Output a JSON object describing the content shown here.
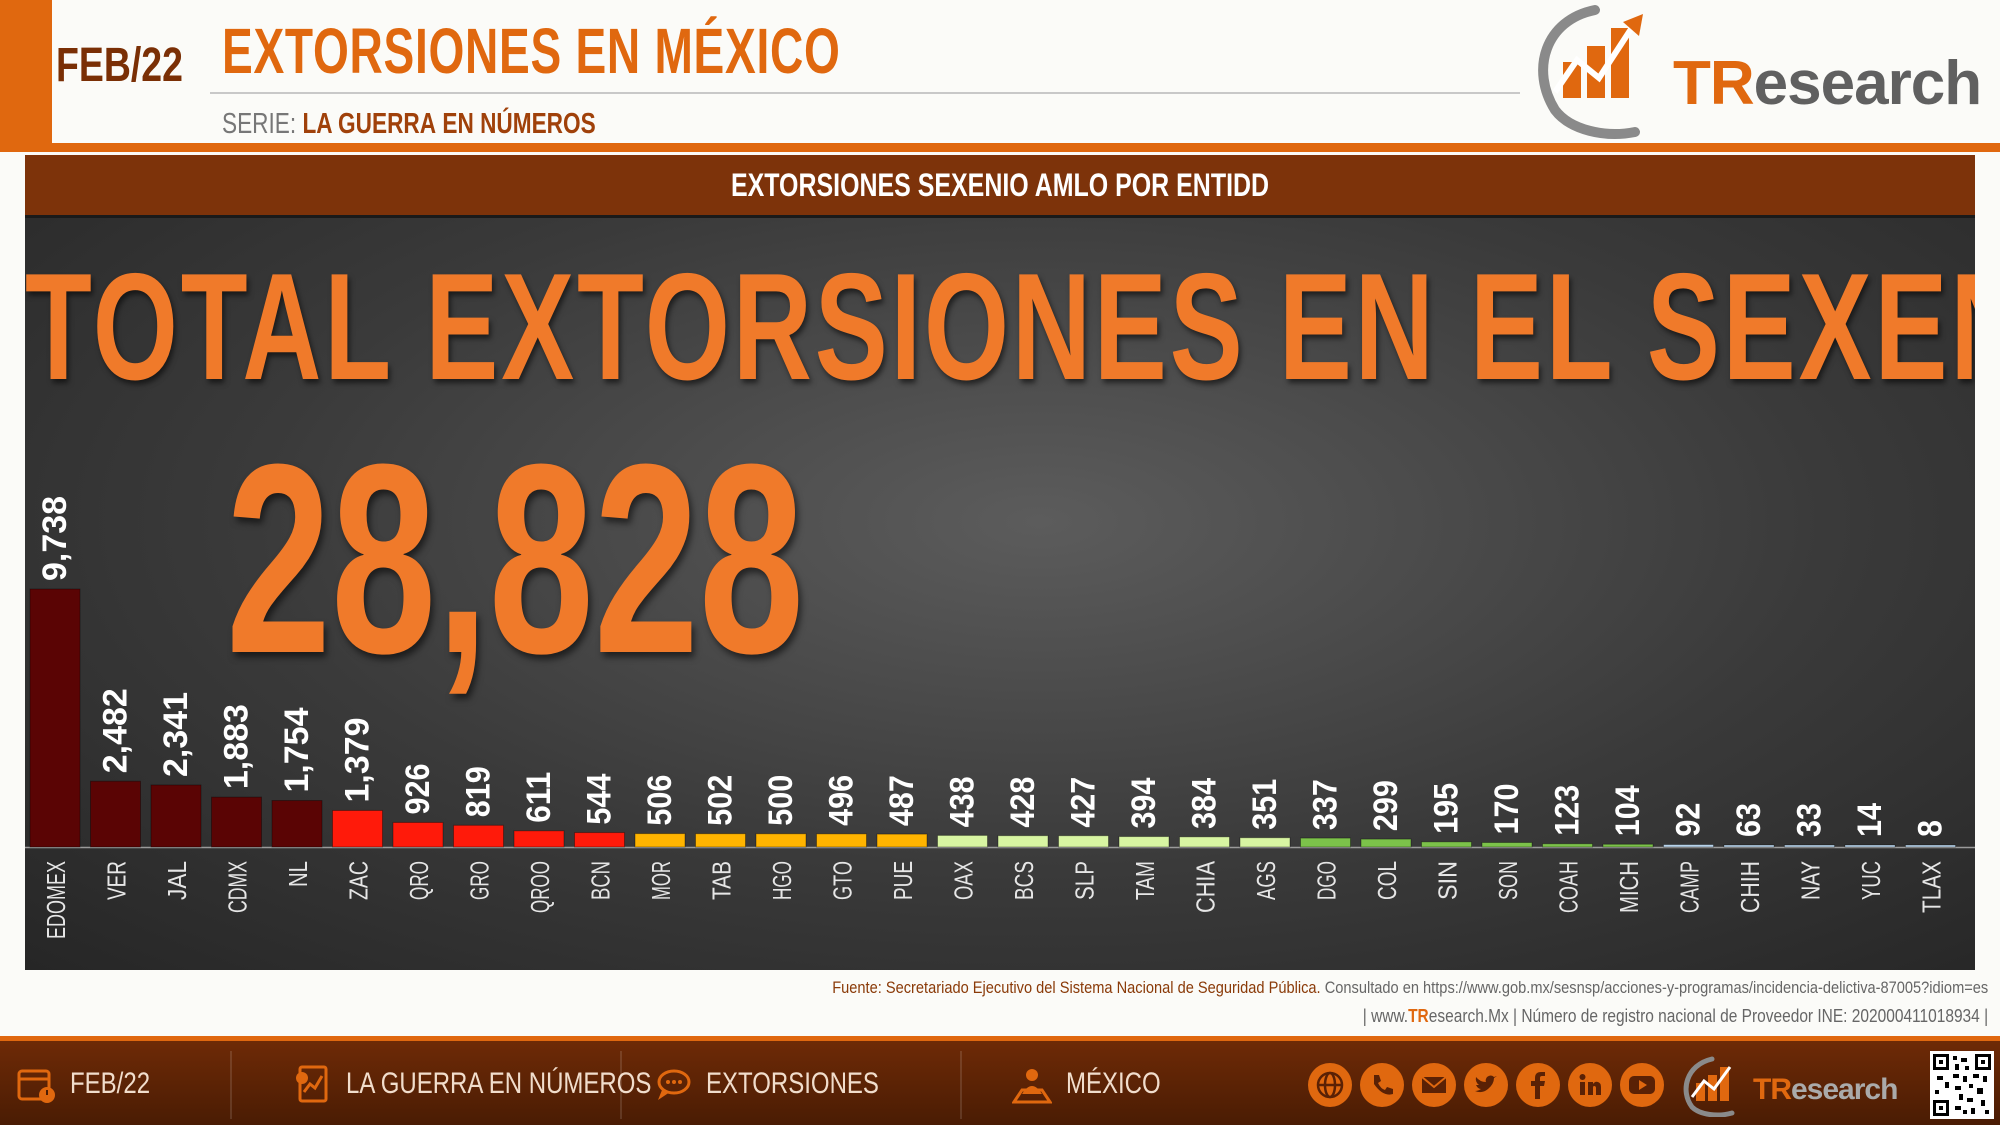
{
  "header": {
    "date": "FEB/22",
    "title": "EXTORSIONES EN MÉXICO",
    "series_prefix": "SERIE:",
    "series_name": "LA GUERRA",
    "series_suffix": "EN NÚMEROS"
  },
  "logo": {
    "tr": "TR",
    "rest": "esearch"
  },
  "chart": {
    "panel_title": "EXTORSIONES SEXENIO AMLO POR ENTIDD",
    "total_heading": "TOTAL EXTORSIONES EN EL SEXENIO",
    "total_value": "28,828"
  },
  "chart_data": {
    "type": "bar",
    "title": "EXTORSIONES SEXENIO AMLO POR ENTIDD",
    "categories": [
      "EDOMEX",
      "VER",
      "JAL",
      "CDMX",
      "NL",
      "ZAC",
      "QRO",
      "GRO",
      "QROO",
      "BCN",
      "MOR",
      "TAB",
      "HGO",
      "GTO",
      "PUE",
      "OAX",
      "BCS",
      "SLP",
      "TAM",
      "CHIA",
      "AGS",
      "DGO",
      "COL",
      "SIN",
      "SON",
      "COAH",
      "MICH",
      "CAMP",
      "CHIH",
      "NAY",
      "YUC",
      "TLAX"
    ],
    "values": [
      9738,
      2482,
      2341,
      1883,
      1754,
      1379,
      926,
      819,
      611,
      544,
      506,
      502,
      500,
      496,
      487,
      438,
      428,
      427,
      394,
      384,
      351,
      337,
      299,
      195,
      170,
      123,
      104,
      92,
      63,
      33,
      14,
      8
    ],
    "value_labels": [
      "9,738",
      "2,482",
      "2,341",
      "1,883",
      "1,754",
      "1,379",
      "926",
      "819",
      "611",
      "544",
      "506",
      "502",
      "500",
      "496",
      "487",
      "438",
      "428",
      "427",
      "394",
      "384",
      "351",
      "337",
      "299",
      "195",
      "170",
      "123",
      "104",
      "92",
      "63",
      "33",
      "14",
      "8"
    ],
    "colors": [
      "#5a0404",
      "#5a0404",
      "#5a0404",
      "#5a0404",
      "#5a0404",
      "#ff1a0a",
      "#ff1a0a",
      "#ff1a0a",
      "#ff1a0a",
      "#ff1a0a",
      "#ffb400",
      "#ffb400",
      "#ffb400",
      "#ffb400",
      "#ffb400",
      "#d8f5a2",
      "#d8f5a2",
      "#d8f5a2",
      "#d8f5a2",
      "#d8f5a2",
      "#d8f5a2",
      "#7cc24a",
      "#7cc24a",
      "#7cc24a",
      "#7cc24a",
      "#7cc24a",
      "#7cc24a",
      "#bcd8f0",
      "#bcd8f0",
      "#bcd8f0",
      "#bcd8f0",
      "#bcd8f0"
    ],
    "ylim": [
      0,
      9738
    ],
    "grid": false,
    "total": 28828
  },
  "source": {
    "label": "Fuente: Secretariado Ejecutivo del Sistema Nacional de Seguridad Pública.",
    "consulted": "Consultado en https://www.gob.mx/sesnsp/acciones-y-programas/incidencia-delictiva-87005?idiom=es",
    "line2_pre": "| www.",
    "line2_tr": "TR",
    "line2_post": "esearch.Mx | Número de registro nacional de Proveedor INE: 202000411018934 |"
  },
  "footer": {
    "date": "FEB/22",
    "series": "LA GUERRA EN NÚMEROS",
    "topic": "EXTORSIONES",
    "place": "MÉXICO",
    "icons": [
      "calendar-icon",
      "report-icon",
      "speech-icon",
      "map-person-icon"
    ],
    "social": [
      "globe-icon",
      "phone-icon",
      "mail-icon",
      "twitter-icon",
      "facebook-icon",
      "linkedin-icon",
      "youtube-icon"
    ]
  }
}
